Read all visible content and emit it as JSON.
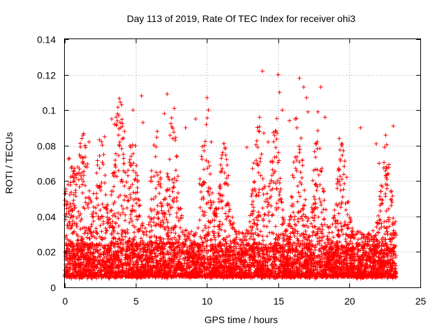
{
  "chart_data": {
    "type": "scatter",
    "title": "Day 113 of 2019, Rate Of TEC Index for receiver ohi3",
    "xlabel": "GPS time / hours",
    "ylabel": "ROTI / TECUs",
    "xlim": [
      0,
      25
    ],
    "ylim": [
      0,
      0.14
    ],
    "xticks": [
      0,
      5,
      10,
      15,
      20,
      25
    ],
    "yticks": [
      0,
      0.02,
      0.04,
      0.06,
      0.08,
      0.1,
      0.12,
      0.14
    ],
    "xtick_labels": [
      "0",
      "5",
      "10",
      "15",
      "20",
      "25"
    ],
    "ytick_labels": [
      "0",
      "0.02",
      "0.04",
      "0.06",
      "0.08",
      "0.1",
      "0.12",
      "0.14"
    ],
    "grid": true,
    "marker": "plus",
    "color": "#ff0000",
    "x_data_range": [
      0,
      23.3
    ],
    "series": [
      {
        "name": "ROTI",
        "points": [
          [
            0.2,
            0.035
          ],
          [
            0.3,
            0.045
          ],
          [
            0.5,
            0.068
          ],
          [
            0.8,
            0.058
          ],
          [
            1.2,
            0.084
          ],
          [
            1.3,
            0.073
          ],
          [
            1.7,
            0.082
          ],
          [
            2.3,
            0.069
          ],
          [
            2.8,
            0.085
          ],
          [
            3.3,
            0.095
          ],
          [
            3.5,
            0.092
          ],
          [
            3.8,
            0.097
          ],
          [
            4.0,
            0.103
          ],
          [
            4.2,
            0.088
          ],
          [
            4.8,
            0.1
          ],
          [
            5.4,
            0.108
          ],
          [
            5.5,
            0.093
          ],
          [
            6.5,
            0.088
          ],
          [
            7.0,
            0.098
          ],
          [
            7.2,
            0.109
          ],
          [
            7.7,
            0.101
          ],
          [
            7.6,
            0.084
          ],
          [
            8.5,
            0.09
          ],
          [
            9.2,
            0.095
          ],
          [
            10.0,
            0.107
          ],
          [
            10.1,
            0.1
          ],
          [
            10.3,
            0.082
          ],
          [
            11.5,
            0.063
          ],
          [
            12.8,
            0.079
          ],
          [
            13.2,
            0.067
          ],
          [
            13.7,
            0.096
          ],
          [
            13.9,
            0.122
          ],
          [
            14.0,
            0.087
          ],
          [
            14.3,
            0.082
          ],
          [
            15.0,
            0.12
          ],
          [
            15.1,
            0.11
          ],
          [
            15.3,
            0.1
          ],
          [
            15.8,
            0.094
          ],
          [
            16.2,
            0.095
          ],
          [
            16.5,
            0.118
          ],
          [
            16.8,
            0.113
          ],
          [
            17.0,
            0.107
          ],
          [
            17.1,
            0.099
          ],
          [
            17.8,
            0.099
          ],
          [
            18.0,
            0.113
          ],
          [
            18.3,
            0.096
          ],
          [
            19.3,
            0.084
          ],
          [
            19.5,
            0.081
          ],
          [
            20.8,
            0.09
          ],
          [
            21.9,
            0.081
          ],
          [
            22.1,
            0.07
          ],
          [
            22.6,
            0.068
          ],
          [
            23.1,
            0.091
          ]
        ]
      }
    ]
  }
}
